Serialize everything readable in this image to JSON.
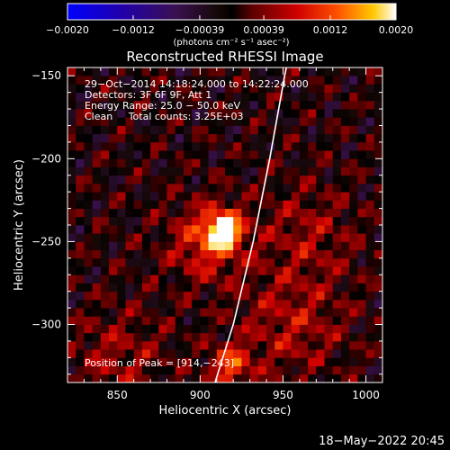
{
  "chart_data": {
    "type": "heatmap",
    "title": "Reconstructed RHESSI Image",
    "xlabel": "Heliocentric X (arcsec)",
    "ylabel": "Heliocentric Y (arcsec)",
    "xlim": [
      820,
      1010
    ],
    "ylim": [
      -335,
      -145
    ],
    "x_ticks": [
      850,
      900,
      950,
      1000
    ],
    "x_tick_labels": [
      "850",
      "900",
      "950",
      "1000"
    ],
    "y_ticks": [
      -150,
      -200,
      -250,
      -300
    ],
    "y_tick_labels": [
      "−150",
      "−200",
      "−250",
      "−300"
    ],
    "info_lines": [
      "29−Oct−2014 14:18:24.000 to 14:22:24.000",
      "Detectors: 3F 6F 9F, Att 1",
      "Energy Range: 25.0 − 50.0 keV",
      "Clean     Total counts: 3.25E+03"
    ],
    "peak_label": "Position of Peak = [914,−243]",
    "peak_position": [
      914,
      -243
    ],
    "sources": [
      {
        "x": 914,
        "y": -243,
        "amplitude": 0.002,
        "sigma": 7
      },
      {
        "x": 905,
        "y": -250,
        "amplitude": 0.001,
        "sigma": 16
      },
      {
        "x": 918,
        "y": -325,
        "amplitude": 0.0011,
        "sigma": 9
      },
      {
        "x": 955,
        "y": -300,
        "amplitude": 0.0006,
        "sigma": 22
      },
      {
        "x": 965,
        "y": -245,
        "amplitude": 0.0005,
        "sigma": 20
      },
      {
        "x": 850,
        "y": -320,
        "amplitude": 0.0005,
        "sigma": 20
      }
    ],
    "limb": [
      {
        "x": 909,
        "y": -335
      },
      {
        "x": 920,
        "y": -300
      },
      {
        "x": 932,
        "y": -250
      },
      {
        "x": 942,
        "y": -200
      },
      {
        "x": 951,
        "y": -150
      },
      {
        "x": 952,
        "y": -145
      }
    ],
    "colorbar": {
      "range": [
        -0.002,
        0.002
      ],
      "tick_values": [
        -0.002,
        -0.0012,
        -0.00039,
        0.00039,
        0.0012,
        0.002
      ],
      "tick_labels": [
        "−0.0020",
        "−0.0012",
        "−0.00039",
        "0.00039",
        "0.0012",
        "0.0020"
      ],
      "units": "(photons cm⁻² s⁻¹ asec⁻²)"
    },
    "grid": false,
    "colors": {
      "background": "#000000",
      "axes": "#ffffff",
      "limb": "#ffffff",
      "text": "#ffffff"
    }
  },
  "timestamp": "18−May−2022 20:45"
}
